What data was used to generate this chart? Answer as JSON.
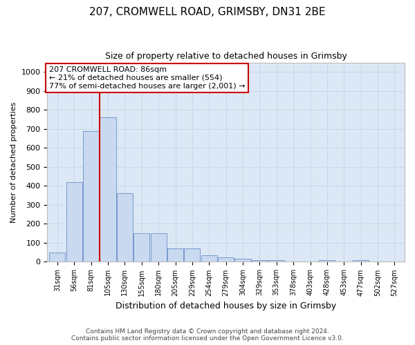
{
  "title1": "207, CROMWELL ROAD, GRIMSBY, DN31 2BE",
  "title2": "Size of property relative to detached houses in Grimsby",
  "xlabel": "Distribution of detached houses by size in Grimsby",
  "ylabel": "Number of detached properties",
  "footer1": "Contains HM Land Registry data © Crown copyright and database right 2024.",
  "footer2": "Contains public sector information licensed under the Open Government Licence v3.0.",
  "annotation_line1": "207 CROMWELL ROAD: 86sqm",
  "annotation_line2": "← 21% of detached houses are smaller (554)",
  "annotation_line3": "77% of semi-detached houses are larger (2,001) →",
  "bar_color": "#c9d9f0",
  "bar_edge_color": "#7799cc",
  "red_line_color": "#cc0000",
  "annotation_box_color": "#ffffff",
  "annotation_box_edge": "#cc0000",
  "grid_color": "#c8d8e8",
  "background_color": "#dce8f5",
  "fig_background": "#ffffff",
  "categories": [
    "31sqm",
    "56sqm",
    "81sqm",
    "105sqm",
    "130sqm",
    "155sqm",
    "180sqm",
    "205sqm",
    "229sqm",
    "254sqm",
    "279sqm",
    "304sqm",
    "329sqm",
    "353sqm",
    "378sqm",
    "403sqm",
    "428sqm",
    "453sqm",
    "477sqm",
    "502sqm",
    "527sqm"
  ],
  "values": [
    50,
    420,
    690,
    760,
    360,
    150,
    150,
    70,
    70,
    35,
    25,
    15,
    10,
    10,
    0,
    0,
    10,
    0,
    10,
    0,
    0
  ],
  "ylim": [
    0,
    1050
  ],
  "yticks": [
    0,
    100,
    200,
    300,
    400,
    500,
    600,
    700,
    800,
    900,
    1000
  ],
  "red_line_x": 2.5,
  "title1_fontsize": 11,
  "title2_fontsize": 9,
  "xlabel_fontsize": 9,
  "ylabel_fontsize": 8,
  "tick_fontsize": 8,
  "xtick_fontsize": 7,
  "footer_fontsize": 6.5,
  "ann_fontsize": 8
}
